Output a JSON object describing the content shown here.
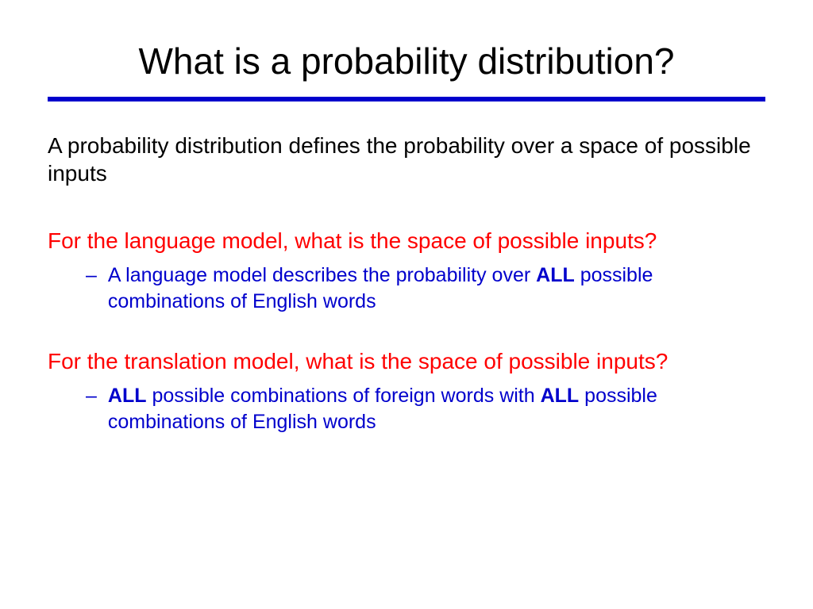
{
  "colors": {
    "title": "#000000",
    "rule": "#0000cc",
    "body": "#000000",
    "question": "#ff0000",
    "answer": "#0000cc",
    "background": "#ffffff"
  },
  "fonts": {
    "title_size": 46,
    "body_size": 28,
    "answer_size": 25,
    "family": "Arial"
  },
  "title": "What is a probability distribution?",
  "intro": "A probability distribution defines the probability over a space of possible inputs",
  "sections": [
    {
      "question": "For the language model, what is the space of possible inputs?",
      "answer_html": "A language model describes the probability over <b>ALL</b> possible combinations of English words"
    },
    {
      "question": "For the translation model, what is the space of possible inputs?",
      "answer_html": "<b>ALL</b> possible combinations of foreign words with <b>ALL</b> possible combinations of English words"
    }
  ]
}
